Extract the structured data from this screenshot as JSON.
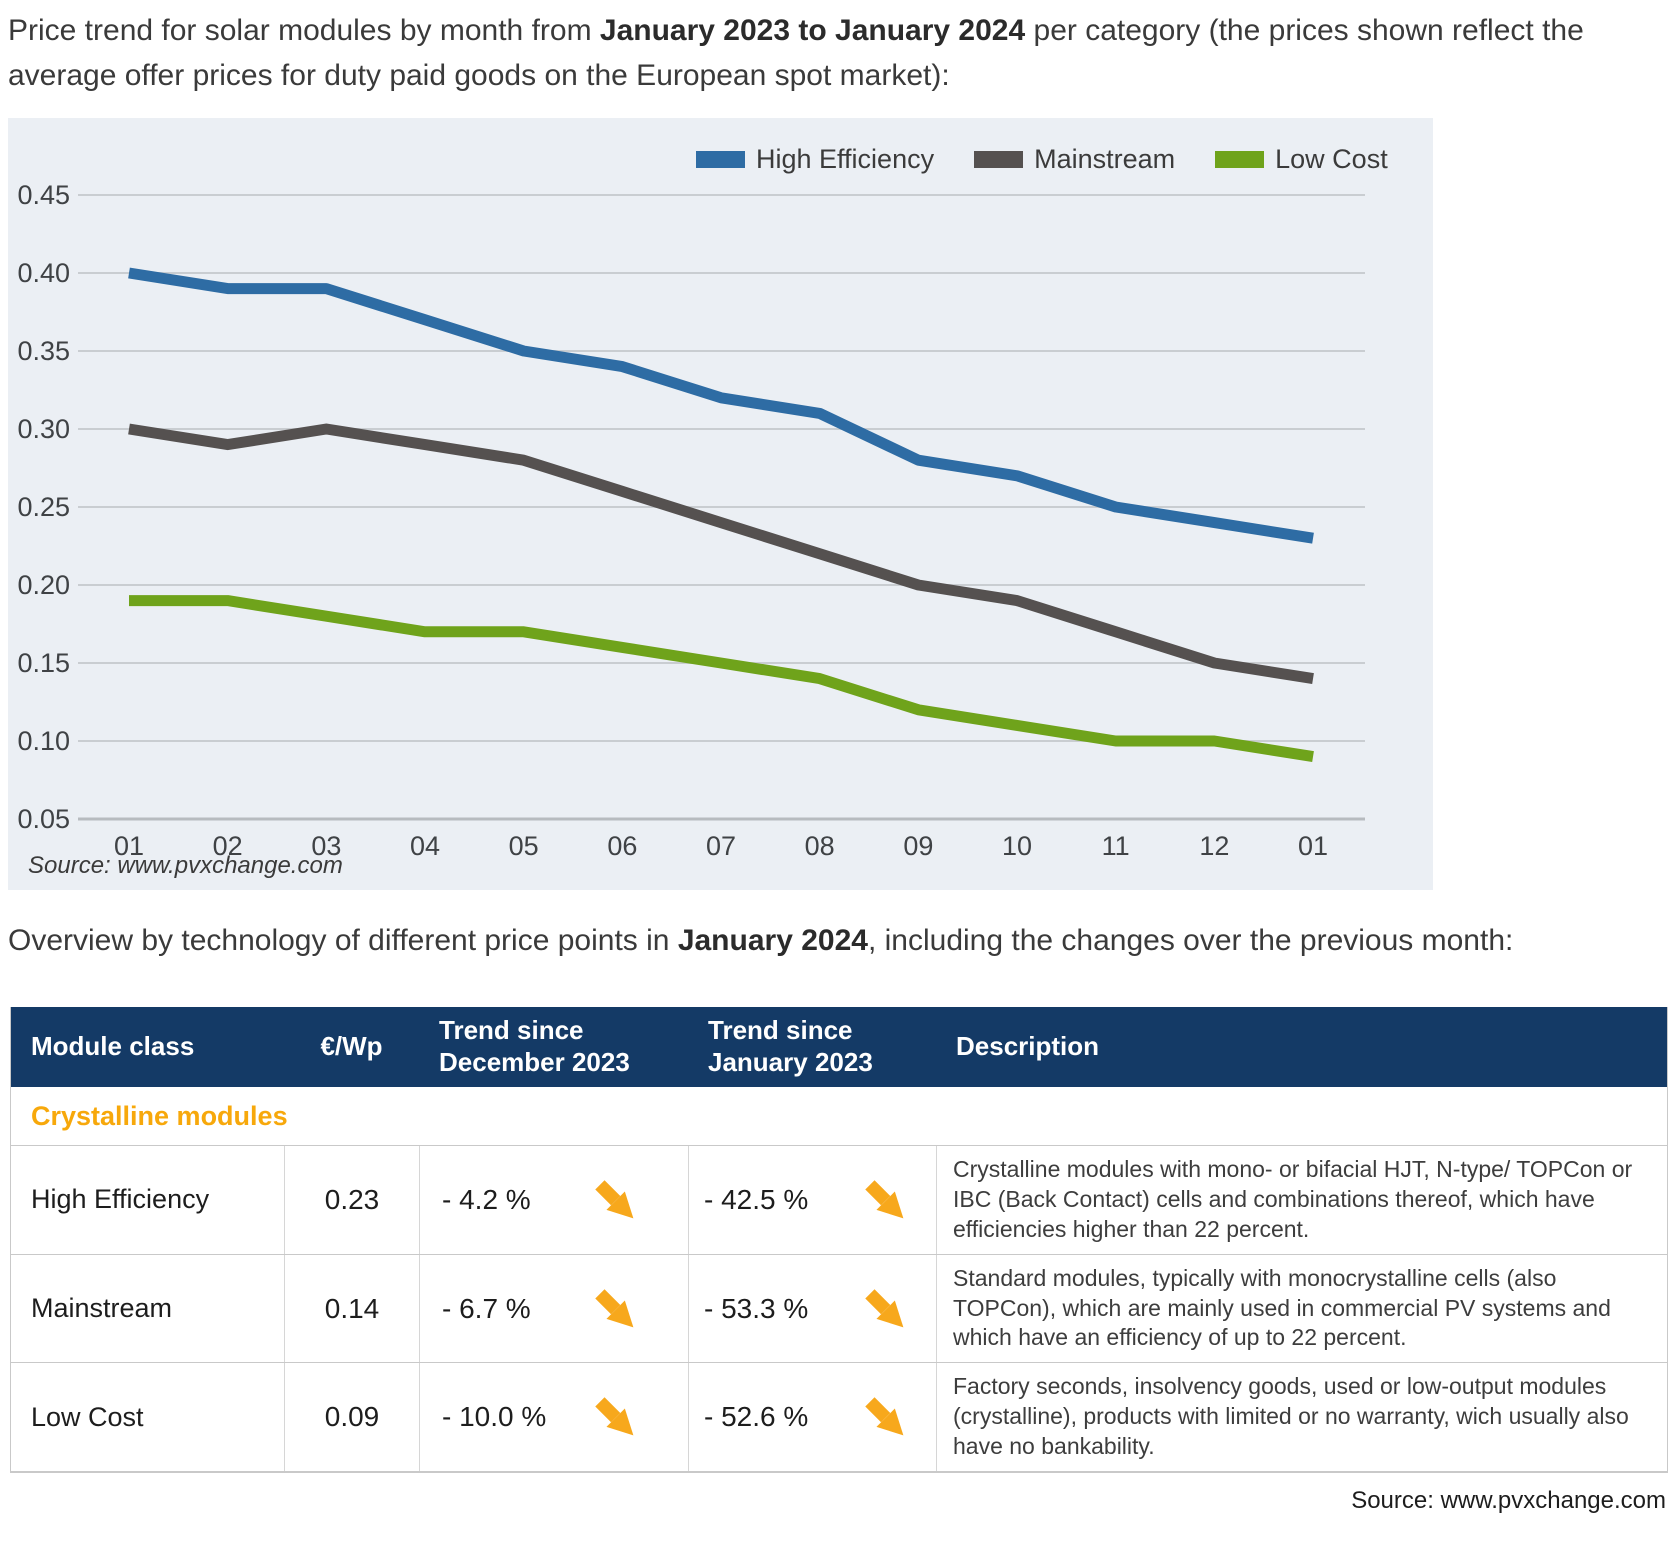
{
  "intro": {
    "pre": "Price trend for solar modules by month from ",
    "bold": "January 2023 to January 2024",
    "post": " per category (the prices shown reflect the average offer prices for duty paid goods on the European spot market):"
  },
  "overview": {
    "pre": "Overview by technology of different price points in ",
    "bold": "January 2024",
    "post": ", including the changes over the previous month:"
  },
  "chart_data": {
    "type": "line",
    "x_labels": [
      "01",
      "02",
      "03",
      "04",
      "05",
      "06",
      "07",
      "08",
      "09",
      "10",
      "11",
      "12",
      "01"
    ],
    "y_ticks": [
      0.45,
      0.4,
      0.35,
      0.3,
      0.25,
      0.2,
      0.15,
      0.1,
      0.05
    ],
    "ylim": [
      0.05,
      0.45
    ],
    "grid": true,
    "legend_position": "top",
    "series": [
      {
        "name": "High Efficiency",
        "color": "#2E6CA4",
        "values": [
          0.4,
          0.39,
          0.39,
          0.37,
          0.35,
          0.34,
          0.32,
          0.31,
          0.28,
          0.27,
          0.25,
          0.24,
          0.23
        ]
      },
      {
        "name": "Mainstream",
        "color": "#555150",
        "values": [
          0.3,
          0.29,
          0.3,
          0.29,
          0.28,
          0.26,
          0.24,
          0.22,
          0.2,
          0.19,
          0.17,
          0.15,
          0.14
        ]
      },
      {
        "name": "Low Cost",
        "color": "#6FA31B",
        "values": [
          0.19,
          0.19,
          0.18,
          0.17,
          0.17,
          0.16,
          0.15,
          0.14,
          0.12,
          0.11,
          0.1,
          0.1,
          0.09
        ]
      }
    ],
    "source": "Source: www.pvxchange.com"
  },
  "table": {
    "headers": [
      "Module class",
      "€/Wp",
      "Trend since December 2023",
      "Trend since January 2023",
      "Description"
    ],
    "section_header": "Crystalline modules",
    "trend_icon": "arrow-down-right",
    "rows": [
      {
        "module_class": "High Efficiency",
        "price_eur_wp": "0.23",
        "trend_since_dec_2023": "- 4.2 %",
        "trend_since_jan_2023": "- 42.5 %",
        "description": "Crystalline modules with mono- or bifacial HJT, N-type/ TOPCon or IBC (Back Contact) cells and combinations thereof, which have efficiencies higher than 22 percent."
      },
      {
        "module_class": "Mainstream",
        "price_eur_wp": "0.14",
        "trend_since_dec_2023": "- 6.7 %",
        "trend_since_jan_2023": "- 53.3 %",
        "description": "Standard modules, typically with monocrystalline cells (also TOPCon), which are mainly used in commercial PV systems and which have an efficiency of up to 22 percent."
      },
      {
        "module_class": "Low Cost",
        "price_eur_wp": "0.09",
        "trend_since_dec_2023": "- 10.0 %",
        "trend_since_jan_2023": "- 52.6 %",
        "description": "Factory seconds, insolvency goods, used or low-output modules (crystalline), products with limited or no warranty, wich usually also have no bankability."
      }
    ],
    "source": "Source: www.pvxchange.com"
  },
  "colors": {
    "chart_background": "#EBEFF4",
    "gridline": "#C9CDD1",
    "table_header_bg": "#143A66",
    "table_header_text": "#FFFFFF",
    "section_header_orange": "#F7A80B",
    "trend_arrow_orange": "#F7A81C",
    "series_high_efficiency": "#2E6CA4",
    "series_mainstream": "#555150",
    "series_low_cost": "#6FA31B"
  }
}
